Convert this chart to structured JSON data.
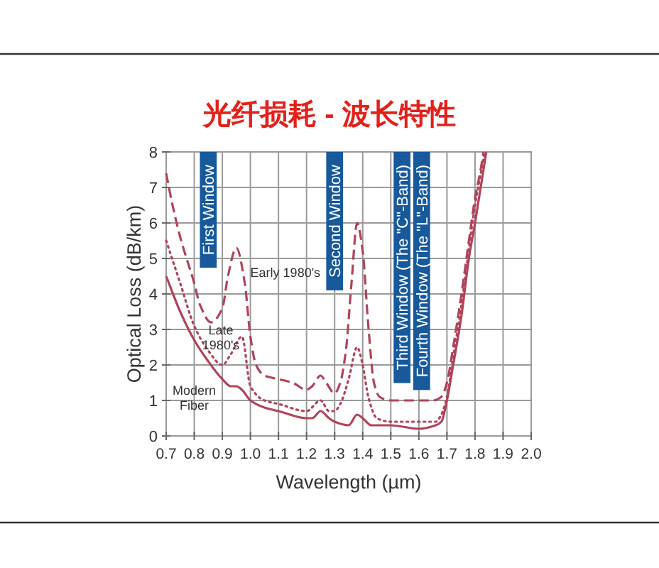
{
  "chart_data": {
    "type": "line",
    "title": "光纤损耗 - 波长特性",
    "xlabel": "Wavelength (µm)",
    "ylabel": "Optical Loss (dB/km)",
    "xlim": [
      0.7,
      2.0
    ],
    "xticks": [
      0.7,
      0.8,
      0.9,
      {
        "value": 1,
        "label": "1.0"
      },
      1.1,
      1.2,
      1.3,
      1.4,
      1.5,
      1.6,
      1.7,
      1.8,
      1.9,
      {
        "value": 2,
        "label": "2.0"
      }
    ],
    "ylim": [
      0,
      8
    ],
    "yticks": [
      0,
      1,
      2,
      3,
      4,
      5,
      6,
      7,
      8
    ],
    "grid": true,
    "bands": [
      {
        "axis": "x",
        "from": 0.82,
        "to": 0.88,
        "label": "First Window",
        "color": "#17599b"
      },
      {
        "axis": "x",
        "from": 1.27,
        "to": 1.33,
        "label": "Second Window",
        "color": "#17599b"
      },
      {
        "axis": "x",
        "from": 1.51,
        "to": 1.57,
        "label": "Third Window (The \"C\"-Band)",
        "color": "#17599b"
      },
      {
        "axis": "x",
        "from": 1.58,
        "to": 1.64,
        "label": "Fourth Window (The \"L\"-Band)",
        "color": "#17599b"
      }
    ],
    "series": [
      {
        "name": "Early 1980's",
        "color": "#b0445a",
        "line_style": "dashed",
        "x": [
          0.7,
          0.72,
          0.75,
          0.8,
          0.82,
          0.86,
          0.9,
          0.92,
          0.95,
          0.98,
          1.0,
          1.02,
          1.05,
          1.1,
          1.15,
          1.2,
          1.22,
          1.25,
          1.27,
          1.3,
          1.32,
          1.34,
          1.36,
          1.38,
          1.4,
          1.42,
          1.44,
          1.46,
          1.5,
          1.6,
          1.65,
          1.68,
          1.7,
          1.72,
          1.75,
          1.78,
          1.8,
          1.82,
          1.83
        ],
        "values": [
          7.4,
          6.6,
          5.6,
          4.3,
          3.7,
          3.2,
          3.6,
          4.5,
          5.3,
          4.3,
          2.8,
          2.0,
          1.7,
          1.6,
          1.5,
          1.3,
          1.4,
          1.7,
          1.5,
          1.2,
          1.5,
          2.4,
          4.3,
          6.0,
          5.2,
          3.1,
          1.5,
          1.1,
          1.0,
          1.0,
          1.0,
          1.1,
          1.5,
          2.4,
          3.9,
          5.6,
          6.7,
          7.5,
          8.0
        ]
      },
      {
        "name": "Late 1980's",
        "color": "#b0445a",
        "line_style": "dotted",
        "x": [
          0.7,
          0.75,
          0.8,
          0.85,
          0.9,
          0.93,
          0.97,
          1.0,
          1.05,
          1.1,
          1.2,
          1.25,
          1.28,
          1.3,
          1.32,
          1.35,
          1.38,
          1.4,
          1.42,
          1.45,
          1.5,
          1.6,
          1.66,
          1.68,
          1.7,
          1.72,
          1.75,
          1.8,
          1.835
        ],
        "values": [
          5.5,
          4.3,
          3.1,
          2.4,
          2.0,
          2.3,
          2.8,
          1.4,
          1.0,
          0.9,
          0.7,
          1.0,
          0.7,
          0.7,
          0.9,
          1.6,
          2.5,
          2.0,
          1.1,
          0.5,
          0.4,
          0.4,
          0.4,
          0.6,
          1.1,
          2.1,
          3.6,
          6.5,
          8.0
        ]
      },
      {
        "name": "Modern Fiber",
        "color": "#b0445a",
        "line_style": "solid",
        "x": [
          0.7,
          0.75,
          0.8,
          0.85,
          0.9,
          0.93,
          0.95,
          0.97,
          1.0,
          1.05,
          1.1,
          1.2,
          1.22,
          1.25,
          1.28,
          1.3,
          1.35,
          1.38,
          1.4,
          1.43,
          1.5,
          1.6,
          1.66,
          1.68,
          1.7,
          1.72,
          1.75,
          1.78,
          1.8,
          1.84
        ],
        "values": [
          4.5,
          3.5,
          2.7,
          2.1,
          1.6,
          1.4,
          1.4,
          1.3,
          1.0,
          0.8,
          0.7,
          0.5,
          0.5,
          0.7,
          0.5,
          0.4,
          0.3,
          0.6,
          0.5,
          0.3,
          0.3,
          0.2,
          0.3,
          0.4,
          1.0,
          1.9,
          3.3,
          5.1,
          6.0,
          8.0
        ]
      }
    ]
  }
}
